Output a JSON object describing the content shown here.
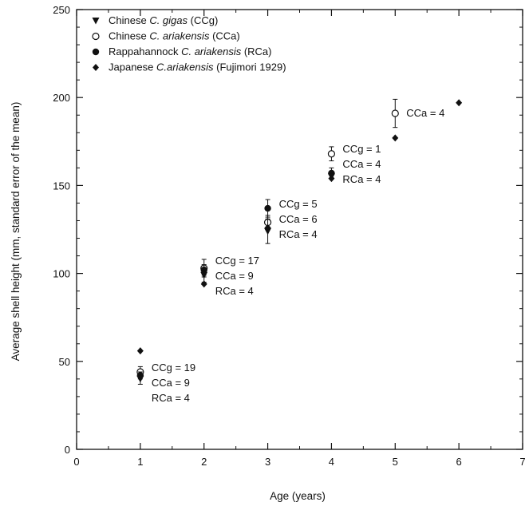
{
  "chart_data": {
    "type": "scatter",
    "xlabel": "Age (years)",
    "ylabel": "Average shell height (mm, standard error of the mean)",
    "xlim": [
      0,
      7
    ],
    "ylim": [
      0,
      250
    ],
    "xticks": [
      0,
      1,
      2,
      3,
      4,
      5,
      6,
      7
    ],
    "yticks": [
      0,
      50,
      100,
      150,
      200,
      250
    ],
    "grid": false,
    "legend_position": "top-left",
    "legend": [
      {
        "marker": "triangle-down-filled",
        "prefix": "Chinese ",
        "species": "C. gigas",
        "suffix": " (CCg)"
      },
      {
        "marker": "circle-open",
        "prefix": "Chinese ",
        "species": "C. ariakensis",
        "suffix": " (CCa)"
      },
      {
        "marker": "circle-filled",
        "prefix": "Rappahannock ",
        "species": "C. ariakensis",
        "suffix": " (RCa)"
      },
      {
        "marker": "diamond-filled",
        "prefix": "Japanese ",
        "species": "C.ariakensis",
        "suffix": " (Fujimori 1929)"
      }
    ],
    "series": [
      {
        "key": "CCg",
        "marker": "triangle-down-filled",
        "points": [
          {
            "x": 1,
            "y": 40,
            "err": 3
          },
          {
            "x": 2,
            "y": 99,
            "err": 4
          },
          {
            "x": 3,
            "y": 124,
            "err": 7
          },
          {
            "x": 4,
            "y": 155,
            "err": 0
          }
        ]
      },
      {
        "key": "CCa",
        "marker": "circle-open",
        "points": [
          {
            "x": 1,
            "y": 44,
            "err": 3
          },
          {
            "x": 2,
            "y": 103,
            "err": 5
          },
          {
            "x": 3,
            "y": 129,
            "err": 4
          },
          {
            "x": 4,
            "y": 168,
            "err": 4
          },
          {
            "x": 5,
            "y": 191,
            "err": 8
          }
        ]
      },
      {
        "key": "RCa",
        "marker": "circle-filled",
        "points": [
          {
            "x": 1,
            "y": 42,
            "err": 2
          },
          {
            "x": 2,
            "y": 102,
            "err": 3
          },
          {
            "x": 3,
            "y": 137,
            "err": 5
          },
          {
            "x": 4,
            "y": 157,
            "err": 3
          }
        ]
      },
      {
        "key": "Japanese",
        "marker": "diamond-filled",
        "points": [
          {
            "x": 1,
            "y": 56
          },
          {
            "x": 2,
            "y": 94
          },
          {
            "x": 3,
            "y": 126
          },
          {
            "x": 4,
            "y": 154
          },
          {
            "x": 5,
            "y": 177
          },
          {
            "x": 6,
            "y": 197
          }
        ]
      }
    ],
    "annotations": [
      {
        "x": 1,
        "lines": [
          "CCg = 19",
          "CCa = 9",
          "RCa = 4"
        ]
      },
      {
        "x": 2,
        "lines": [
          "CCg = 17",
          "CCa = 9",
          "RCa = 4"
        ]
      },
      {
        "x": 3,
        "lines": [
          "CCg = 5",
          "CCa = 6",
          "RCa = 4"
        ]
      },
      {
        "x": 4,
        "lines": [
          "CCg = 1",
          "CCa = 4",
          "RCa = 4"
        ]
      },
      {
        "x": 5,
        "lines": [
          "CCa = 4"
        ]
      }
    ]
  }
}
